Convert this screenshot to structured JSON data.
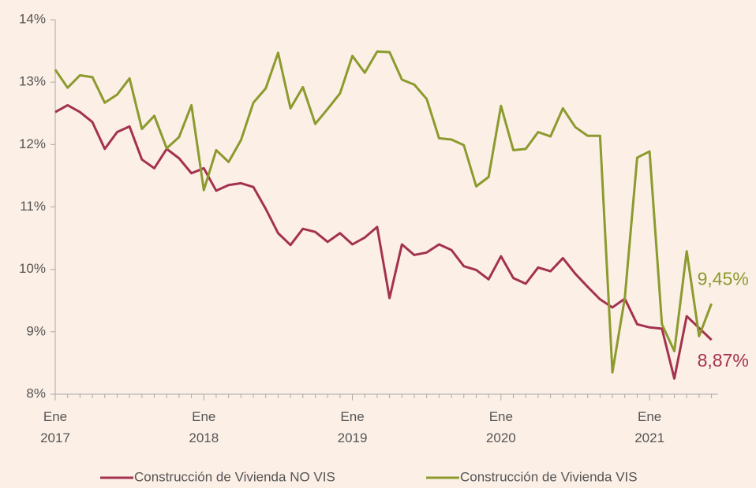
{
  "chart_data": {
    "type": "line",
    "categories": [
      "Ene 2017",
      null,
      null,
      null,
      null,
      null,
      null,
      null,
      null,
      null,
      null,
      null,
      "Ene 2018",
      null,
      null,
      null,
      null,
      null,
      null,
      null,
      null,
      null,
      null,
      null,
      "Ene 2019",
      null,
      null,
      null,
      null,
      null,
      null,
      null,
      null,
      null,
      null,
      null,
      "Ene 2020",
      null,
      null,
      null,
      null,
      null,
      null,
      null,
      null,
      null,
      null,
      null,
      "Ene 2021",
      null,
      null,
      null,
      null,
      null
    ],
    "series": [
      {
        "name": "Construcción de Vivienda NO VIS",
        "color": "#a3324f",
        "values": [
          12.52,
          12.63,
          12.52,
          12.36,
          11.93,
          12.2,
          12.29,
          11.76,
          11.62,
          11.93,
          11.78,
          11.54,
          11.62,
          11.26,
          11.35,
          11.38,
          11.32,
          10.97,
          10.58,
          10.39,
          10.65,
          10.6,
          10.44,
          10.58,
          10.4,
          10.51,
          10.68,
          9.54,
          10.4,
          10.23,
          10.27,
          10.4,
          10.31,
          10.05,
          9.99,
          9.84,
          10.21,
          9.86,
          9.77,
          10.03,
          9.97,
          10.18,
          9.93,
          9.72,
          9.52,
          9.39,
          9.53,
          9.12,
          9.07,
          9.05,
          8.25,
          9.25,
          9.06,
          8.87
        ],
        "value_labels": [
          null,
          null,
          null,
          null,
          null,
          null,
          null,
          null,
          null,
          null,
          null,
          null,
          null,
          null,
          null,
          null,
          null,
          null,
          null,
          null,
          null,
          null,
          null,
          null,
          null,
          null,
          null,
          null,
          null,
          null,
          null,
          null,
          null,
          null,
          null,
          null,
          null,
          null,
          null,
          null,
          null,
          null,
          null,
          null,
          null,
          null,
          null,
          null,
          null,
          null,
          null,
          null,
          null,
          "8,87%"
        ]
      },
      {
        "name": "Construcción de Vivienda VIS",
        "color": "#8c9a2e",
        "values": [
          13.2,
          12.91,
          13.11,
          13.08,
          12.67,
          12.8,
          13.06,
          12.25,
          12.46,
          11.94,
          12.12,
          12.63,
          11.27,
          11.91,
          11.72,
          12.07,
          12.67,
          12.9,
          13.47,
          12.58,
          12.92,
          12.33,
          12.57,
          12.82,
          13.42,
          13.15,
          13.49,
          13.48,
          13.04,
          12.96,
          12.73,
          12.1,
          12.08,
          11.99,
          11.33,
          11.48,
          12.62,
          11.91,
          11.93,
          12.2,
          12.13,
          12.58,
          12.28,
          12.14,
          12.14,
          8.35,
          9.54,
          11.79,
          11.89,
          9.12,
          8.69,
          10.29,
          8.93,
          9.45
        ],
        "value_labels": [
          null,
          null,
          null,
          null,
          null,
          null,
          null,
          null,
          null,
          null,
          null,
          null,
          null,
          null,
          null,
          null,
          null,
          null,
          null,
          null,
          null,
          null,
          null,
          null,
          null,
          null,
          null,
          null,
          null,
          null,
          null,
          null,
          null,
          null,
          null,
          null,
          null,
          null,
          null,
          null,
          null,
          null,
          null,
          null,
          null,
          null,
          null,
          null,
          null,
          null,
          null,
          null,
          null,
          "9,45%"
        ]
      }
    ],
    "ylim": [
      8,
      14
    ],
    "yticks": [
      {
        "value": 8,
        "label": "8%"
      },
      {
        "value": 9,
        "label": "9%"
      },
      {
        "value": 10,
        "label": "10%"
      },
      {
        "value": 11,
        "label": "11%"
      },
      {
        "value": 12,
        "label": "12%"
      },
      {
        "value": 13,
        "label": "13%"
      },
      {
        "value": 14,
        "label": "14%"
      }
    ],
    "grid": false,
    "legend": "bottom"
  }
}
